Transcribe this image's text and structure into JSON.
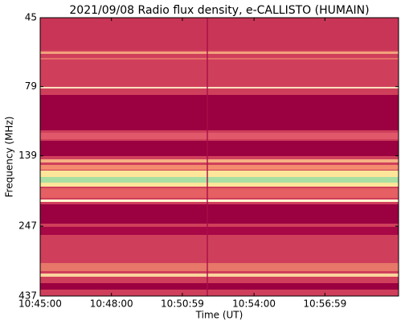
{
  "chart_data": {
    "type": "spectrogram",
    "title": "2021/09/08  Radio flux density, e-CALLISTO (HUMAIN)",
    "xlabel": "Time (UT)",
    "ylabel": "Frequency (MHz)",
    "xlim": [
      "10:45:00",
      "11:00:05"
    ],
    "xticks": [
      "10:45:00",
      "10:48:00",
      "10:50:59",
      "10:54:00",
      "10:56:59"
    ],
    "ylim": [
      45,
      437
    ],
    "yticks": [
      45,
      79,
      139,
      247,
      437
    ],
    "ylog": true,
    "yinverted": true
  }
}
